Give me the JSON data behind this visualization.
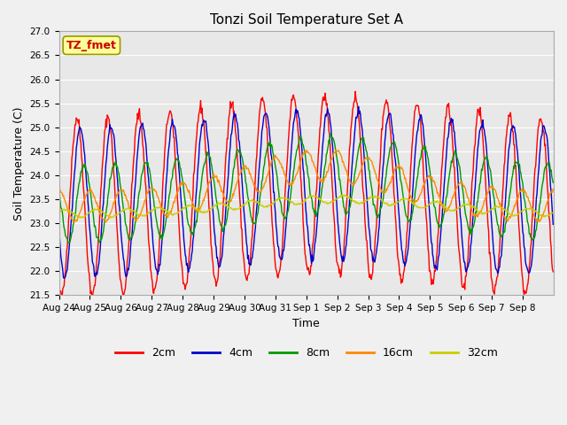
{
  "title": "Tonzi Soil Temperature Set A",
  "xlabel": "Time",
  "ylabel": "Soil Temperature (C)",
  "ylim": [
    21.5,
    27.0
  ],
  "annotation_text": "TZ_fmet",
  "annotation_color": "#cc0000",
  "annotation_bg": "#ffff99",
  "annotation_border": "#999900",
  "series_colors": {
    "2cm": "#ff0000",
    "4cm": "#0000cc",
    "8cm": "#009900",
    "16cm": "#ff8800",
    "32cm": "#cccc00"
  },
  "legend_labels": [
    "2cm",
    "4cm",
    "8cm",
    "16cm",
    "32cm"
  ],
  "x_tick_labels": [
    "Aug 24",
    "Aug 25",
    "Aug 26",
    "Aug 27",
    "Aug 28",
    "Aug 29",
    "Aug 30",
    "Aug 31",
    "Sep 1",
    "Sep 2",
    "Sep 3",
    "Sep 4",
    "Sep 5",
    "Sep 6",
    "Sep 7",
    "Sep 8"
  ],
  "figsize": [
    6.4,
    4.8
  ],
  "dpi": 100,
  "fig_facecolor": "#f0f0f0",
  "ax_facecolor": "#e8e8e8",
  "grid_color": "#ffffff",
  "title_fontsize": 11,
  "label_fontsize": 9,
  "tick_fontsize": 7.5,
  "legend_fontsize": 9
}
